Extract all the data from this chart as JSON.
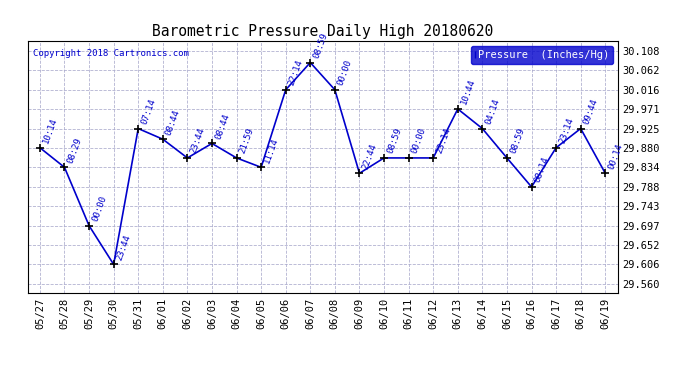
{
  "title": "Barometric Pressure Daily High 20180620",
  "copyright": "Copyright 2018 Cartronics.com",
  "legend_label": "Pressure  (Inches/Hg)",
  "dates": [
    "05/27",
    "05/28",
    "05/29",
    "05/30",
    "05/31",
    "06/01",
    "06/02",
    "06/03",
    "06/04",
    "06/05",
    "06/06",
    "06/07",
    "06/08",
    "06/09",
    "06/10",
    "06/11",
    "06/12",
    "06/13",
    "06/14",
    "06/15",
    "06/16",
    "06/17",
    "06/18",
    "06/19"
  ],
  "values": [
    29.88,
    29.834,
    29.697,
    29.606,
    29.925,
    29.9,
    29.856,
    29.89,
    29.856,
    29.834,
    30.016,
    30.08,
    30.016,
    29.82,
    29.856,
    29.856,
    29.856,
    29.971,
    29.925,
    29.856,
    29.788,
    29.88,
    29.925,
    29.82
  ],
  "time_labels": [
    "10:14",
    "08:29",
    "00:00",
    "23:44",
    "07:14",
    "08:44",
    "23:44",
    "08:44",
    "21:59",
    "11:14",
    "22:14",
    "08:59",
    "00:00",
    "22:44",
    "08:59",
    "00:00",
    "23:14",
    "10:44",
    "04:14",
    "08:59",
    "08:14",
    "23:14",
    "09:44",
    "00:14"
  ],
  "ylim": [
    29.54,
    30.13
  ],
  "yticks": [
    29.56,
    29.606,
    29.652,
    29.697,
    29.743,
    29.788,
    29.834,
    29.88,
    29.925,
    29.971,
    30.016,
    30.062,
    30.108
  ],
  "line_color": "#0000cc",
  "marker_color": "#000000",
  "label_color": "#0000cc",
  "title_color": "#000000",
  "background_color": "#ffffff",
  "legend_bg": "#0000cc",
  "legend_text": "#ffffff",
  "copyright_color": "#0000cc",
  "grid_color": "#aaaacc",
  "spine_color": "#000000"
}
